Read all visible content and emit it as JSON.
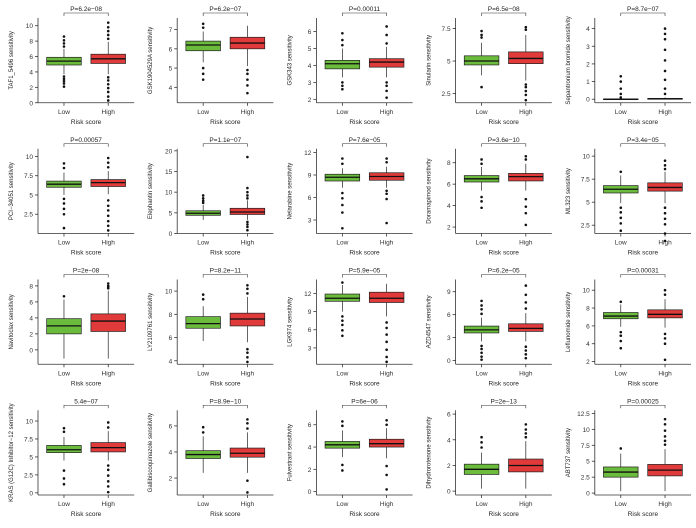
{
  "figure": {
    "xlabel": "Risk score",
    "categories": [
      "Low",
      "High"
    ],
    "colors": {
      "Low": "#6bbb3c",
      "High": "#e03a3a",
      "line": "#000000"
    }
  },
  "chart_data": [
    {
      "type": "box",
      "ylabel": "TAF1_5496 sensitivity",
      "pvalue": "P=6.2e−08",
      "ylim": [
        0,
        11
      ],
      "yticks": [
        0,
        2,
        4,
        6,
        8,
        10
      ],
      "series": [
        {
          "name": "Low",
          "q1": 4.9,
          "median": 5.4,
          "q3": 5.9,
          "whisker_low": 3.7,
          "whisker_high": 7.0,
          "outliers": [
            2.1,
            2.5,
            2.8,
            3.1,
            3.4,
            7.3,
            7.7,
            8.1,
            8.6
          ]
        },
        {
          "name": "High",
          "q1": 5.1,
          "median": 5.7,
          "q3": 6.3,
          "whisker_low": 3.7,
          "whisker_high": 7.9,
          "outliers": [
            0.3,
            0.8,
            1.4,
            1.9,
            2.4,
            2.9,
            3.3,
            8.3,
            8.8,
            9.3,
            9.8,
            10.4
          ]
        }
      ]
    },
    {
      "type": "box",
      "ylabel": "GSK1904529A sensitivity",
      "pvalue": "P=6.2e−07",
      "ylim": [
        3.2,
        7.6
      ],
      "yticks": [
        4,
        5,
        6,
        7
      ],
      "series": [
        {
          "name": "Low",
          "q1": 5.9,
          "median": 6.2,
          "q3": 6.4,
          "whisker_low": 5.3,
          "whisker_high": 6.9,
          "outliers": [
            4.4,
            4.7,
            5.0,
            7.1,
            7.3
          ]
        },
        {
          "name": "High",
          "q1": 6.0,
          "median": 6.3,
          "q3": 6.6,
          "whisker_low": 5.1,
          "whisker_high": 7.2,
          "outliers": [
            3.7,
            4.1,
            4.4,
            4.7,
            4.9
          ]
        }
      ]
    },
    {
      "type": "box",
      "ylabel": "GSK343 sensitivity",
      "pvalue": "P=0.00011",
      "ylim": [
        1.8,
        6.8
      ],
      "yticks": [
        2,
        3,
        4,
        5,
        6
      ],
      "series": [
        {
          "name": "Low",
          "q1": 3.8,
          "median": 4.1,
          "q3": 4.3,
          "whisker_low": 3.3,
          "whisker_high": 5.0,
          "outliers": [
            2.6,
            2.8,
            3.0,
            5.2,
            5.5,
            5.9
          ]
        },
        {
          "name": "High",
          "q1": 3.9,
          "median": 4.2,
          "q3": 4.4,
          "whisker_low": 3.3,
          "whisker_high": 5.1,
          "outliers": [
            2.1,
            2.5,
            2.8,
            3.0,
            5.3,
            5.8,
            6.3
          ]
        }
      ]
    },
    {
      "type": "box",
      "ylabel": "Sinularin sensitivity",
      "pvalue": "P=6.5e−08",
      "ylim": [
        1.8,
        8.3
      ],
      "yticks": [
        2.5,
        5.0,
        7.5
      ],
      "series": [
        {
          "name": "Low",
          "q1": 4.7,
          "median": 5.0,
          "q3": 5.4,
          "whisker_low": 3.9,
          "whisker_high": 6.4,
          "outliers": [
            3.0,
            6.8,
            7.0,
            7.3
          ]
        },
        {
          "name": "High",
          "q1": 4.8,
          "median": 5.2,
          "q3": 5.7,
          "whisker_low": 3.5,
          "whisker_high": 7.0,
          "outliers": [
            2.0,
            2.4,
            2.7,
            3.0,
            3.2,
            7.4,
            7.6
          ]
        }
      ]
    },
    {
      "type": "box",
      "ylabel": "Sepantronium bromide sensitivity",
      "pvalue": "P=8.7e−07",
      "ylim": [
        -0.2,
        4.6
      ],
      "yticks": [
        0,
        1,
        2,
        3,
        4
      ],
      "series": [
        {
          "name": "Low",
          "q1": 0.0,
          "median": 0.0,
          "q3": 0.02,
          "whisker_low": 0.0,
          "whisker_high": 0.05,
          "outliers": [
            0.1,
            0.3,
            0.6,
            1.0,
            1.3
          ]
        },
        {
          "name": "High",
          "q1": 0.0,
          "median": 0.02,
          "q3": 0.05,
          "whisker_low": 0.0,
          "whisker_high": 0.1,
          "outliers": [
            0.3,
            0.6,
            1.1,
            1.6,
            2.2,
            2.8,
            3.4,
            3.7,
            4.0
          ]
        }
      ]
    },
    {
      "type": "box",
      "ylabel": "PCI−34051 sensitivity",
      "pvalue": "P=0.00057",
      "ylim": [
        0,
        11
      ],
      "yticks": [
        2.5,
        5.0,
        7.5,
        10.0
      ],
      "series": [
        {
          "name": "Low",
          "q1": 6.0,
          "median": 6.4,
          "q3": 6.8,
          "whisker_low": 5.0,
          "whisker_high": 7.9,
          "outliers": [
            0.7,
            2.5,
            3.2,
            3.9,
            4.5,
            8.5,
            9.1
          ]
        },
        {
          "name": "High",
          "q1": 6.1,
          "median": 6.6,
          "q3": 7.0,
          "whisker_low": 5.1,
          "whisker_high": 8.1,
          "outliers": [
            0.4,
            1.0,
            1.6,
            2.3,
            3.0,
            3.6,
            4.3,
            8.6,
            9.2,
            9.8
          ]
        }
      ]
    },
    {
      "type": "box",
      "ylabel": "Elephantin sensitivity",
      "pvalue": "P=1.1e−07",
      "ylim": [
        0,
        20.5
      ],
      "yticks": [
        0,
        5,
        10,
        15,
        20
      ],
      "series": [
        {
          "name": "Low",
          "q1": 4.4,
          "median": 4.9,
          "q3": 5.5,
          "whisker_low": 3.3,
          "whisker_high": 6.9,
          "outliers": [
            7.4,
            7.9,
            8.5,
            9.2
          ]
        },
        {
          "name": "High",
          "q1": 4.6,
          "median": 5.2,
          "q3": 6.1,
          "whisker_low": 3.3,
          "whisker_high": 8.0,
          "outliers": [
            0.8,
            1.6,
            2.2,
            2.8,
            8.5,
            9.2,
            10.0,
            11.0,
            18.5
          ]
        }
      ]
    },
    {
      "type": "box",
      "ylabel": "Nelarabine sensitivity",
      "pvalue": "P=7.6e−05",
      "ylim": [
        1.2,
        12.5
      ],
      "yticks": [
        3,
        6,
        9,
        12
      ],
      "series": [
        {
          "name": "Low",
          "q1": 8.2,
          "median": 8.7,
          "q3": 9.1,
          "whisker_low": 7.3,
          "whisker_high": 9.9,
          "outliers": [
            1.9,
            4.0,
            5.0,
            5.9,
            6.6,
            10.5,
            11.2
          ]
        },
        {
          "name": "High",
          "q1": 8.3,
          "median": 8.8,
          "q3": 9.3,
          "whisker_low": 7.3,
          "whisker_high": 10.1,
          "outliers": [
            2.6,
            5.8,
            6.5,
            6.9,
            10.7,
            11.2
          ]
        }
      ]
    },
    {
      "type": "box",
      "ylabel": "Doramapimod sensitivity",
      "pvalue": "P=3.6e−10",
      "ylim": [
        1.4,
        9.3
      ],
      "yticks": [
        2,
        4,
        6,
        8
      ],
      "series": [
        {
          "name": "Low",
          "q1": 6.2,
          "median": 6.5,
          "q3": 6.8,
          "whisker_low": 5.4,
          "whisker_high": 7.6,
          "outliers": [
            3.8,
            4.4,
            4.8,
            7.9,
            8.3
          ]
        },
        {
          "name": "High",
          "q1": 6.3,
          "median": 6.7,
          "q3": 7.0,
          "whisker_low": 5.4,
          "whisker_high": 7.9,
          "outliers": [
            2.2,
            3.3,
            3.9,
            4.6,
            8.3,
            8.6
          ]
        }
      ]
    },
    {
      "type": "box",
      "ylabel": "ML323 sensitivity",
      "pvalue": "P=3.4e−05",
      "ylim": [
        1.6,
        10.8
      ],
      "yticks": [
        2.5,
        5.0,
        7.5,
        10.0
      ],
      "series": [
        {
          "name": "Low",
          "q1": 6.0,
          "median": 6.4,
          "q3": 6.8,
          "whisker_low": 4.9,
          "whisker_high": 7.9,
          "outliers": [
            1.9,
            2.7,
            3.3,
            3.9,
            4.4,
            8.3
          ]
        },
        {
          "name": "High",
          "q1": 6.2,
          "median": 6.6,
          "q3": 7.1,
          "whisker_low": 4.9,
          "whisker_high": 8.3,
          "outliers": [
            0.8,
            1.6,
            2.6,
            3.2,
            3.8,
            4.4,
            8.6,
            9.0,
            9.5
          ]
        }
      ]
    },
    {
      "type": "box",
      "ylabel": "Navitoclax sensitivity",
      "pvalue": "P=2e−08",
      "ylim": [
        -1.8,
        8.8
      ],
      "yticks": [
        0,
        2,
        4,
        6,
        8
      ],
      "series": [
        {
          "name": "Low",
          "q1": 2.0,
          "median": 3.0,
          "q3": 3.9,
          "whisker_low": -1.1,
          "whisker_high": 6.3,
          "outliers": [
            6.7
          ]
        },
        {
          "name": "High",
          "q1": 2.3,
          "median": 3.6,
          "q3": 4.5,
          "whisker_low": -1.1,
          "whisker_high": 7.4,
          "outliers": [
            7.7,
            8.0,
            8.3,
            7.9
          ]
        }
      ]
    },
    {
      "type": "box",
      "ylabel": "LY2109761 sensitivity",
      "pvalue": "P=8.2e−11",
      "ylim": [
        3.7,
        11
      ],
      "yticks": [
        4,
        6,
        8,
        10
      ],
      "series": [
        {
          "name": "Low",
          "q1": 6.8,
          "median": 7.2,
          "q3": 7.8,
          "whisker_low": 5.7,
          "whisker_high": 8.7,
          "outliers": [
            9.3,
            9.7
          ]
        },
        {
          "name": "High",
          "q1": 7.0,
          "median": 7.6,
          "q3": 8.1,
          "whisker_low": 5.6,
          "whisker_high": 9.5,
          "outliers": [
            3.9,
            4.3,
            4.7,
            5.0,
            9.8,
            10.2,
            10.5
          ]
        }
      ]
    },
    {
      "type": "box",
      "ylabel": "LGK974 sensitivity",
      "pvalue": "P=5.9e−05",
      "ylim": [
        0.3,
        14.3
      ],
      "yticks": [
        3,
        6,
        9,
        12
      ],
      "series": [
        {
          "name": "Low",
          "q1": 10.7,
          "median": 11.2,
          "q3": 11.9,
          "whisker_low": 9.0,
          "whisker_high": 13.4,
          "outliers": [
            5.0,
            5.9,
            6.8,
            7.5,
            8.2,
            13.8
          ]
        },
        {
          "name": "High",
          "q1": 10.5,
          "median": 11.2,
          "q3": 12.2,
          "whisker_low": 8.2,
          "whisker_high": 13.6,
          "outliers": [
            0.7,
            1.5,
            2.7,
            4.0,
            5.2,
            6.3,
            7.2
          ]
        }
      ]
    },
    {
      "type": "box",
      "ylabel": "AZD4547 sensitivity",
      "pvalue": "P=6.2e−05",
      "ylim": [
        -0.5,
        10.6
      ],
      "yticks": [
        0,
        3,
        6,
        9
      ],
      "series": [
        {
          "name": "Low",
          "q1": 3.6,
          "median": 4.0,
          "q3": 4.5,
          "whisker_low": 2.5,
          "whisker_high": 5.6,
          "outliers": [
            0.1,
            0.5,
            1.0,
            1.5,
            1.9,
            6.1,
            6.7,
            7.2,
            7.8
          ]
        },
        {
          "name": "High",
          "q1": 3.8,
          "median": 4.2,
          "q3": 4.8,
          "whisker_low": 2.5,
          "whisker_high": 6.2,
          "outliers": [
            0.3,
            0.8,
            1.3,
            1.8,
            6.8,
            7.6,
            8.6,
            9.8
          ]
        }
      ]
    },
    {
      "type": "box",
      "ylabel": "Leflunomide sensitivity",
      "pvalue": "P=0.00031",
      "ylim": [
        1.7,
        11.2
      ],
      "yticks": [
        2,
        4,
        6,
        8,
        10
      ],
      "series": [
        {
          "name": "Low",
          "q1": 6.8,
          "median": 7.1,
          "q3": 7.5,
          "whisker_low": 5.9,
          "whisker_high": 8.4,
          "outliers": [
            3.5,
            4.3,
            4.9,
            5.3,
            8.7
          ]
        },
        {
          "name": "High",
          "q1": 6.9,
          "median": 7.3,
          "q3": 7.8,
          "whisker_low": 5.8,
          "whisker_high": 9.0,
          "outliers": [
            2.2,
            4.0,
            4.6,
            5.1,
            9.5,
            10.0
          ]
        }
      ]
    },
    {
      "type": "box",
      "ylabel": "KRAS (G12C) Inhibitor−12 sensitivity",
      "pvalue": "5.4e−07",
      "ylim": [
        -0.3,
        11.5
      ],
      "yticks": [
        0.0,
        2.5,
        5.0,
        7.5,
        10.0
      ],
      "series": [
        {
          "name": "Low",
          "q1": 5.6,
          "median": 6.0,
          "q3": 6.6,
          "whisker_low": 4.5,
          "whisker_high": 7.8,
          "outliers": [
            1.2,
            2.0,
            3.1,
            8.5,
            9.0
          ]
        },
        {
          "name": "High",
          "q1": 5.7,
          "median": 6.3,
          "q3": 7.0,
          "whisker_low": 4.5,
          "whisker_high": 8.6,
          "outliers": [
            0.1,
            0.9,
            1.6,
            2.4,
            3.2,
            3.8,
            9.1,
            9.8
          ]
        }
      ]
    },
    {
      "type": "box",
      "ylabel": "Gallibiscoquinazole sensitivity",
      "pvalue": "P=8.9e−10",
      "ylim": [
        0.7,
        7.2
      ],
      "yticks": [
        2,
        4,
        6
      ],
      "series": [
        {
          "name": "Low",
          "q1": 3.5,
          "median": 3.8,
          "q3": 4.1,
          "whisker_low": 2.4,
          "whisker_high": 5.2,
          "outliers": [
            5.5,
            5.9
          ]
        },
        {
          "name": "High",
          "q1": 3.6,
          "median": 3.9,
          "q3": 4.3,
          "whisker_low": 2.4,
          "whisker_high": 5.5,
          "outliers": [
            0.9,
            1.8,
            5.8,
            6.2,
            6.5
          ]
        }
      ]
    },
    {
      "type": "box",
      "ylabel": "Fulvestrant sensitivity",
      "pvalue": "P=6e−06",
      "ylim": [
        -0.3,
        7.3
      ],
      "yticks": [
        0,
        2,
        4,
        6
      ],
      "series": [
        {
          "name": "Low",
          "q1": 3.9,
          "median": 4.2,
          "q3": 4.5,
          "whisker_low": 3.1,
          "whisker_high": 5.5,
          "outliers": [
            1.9,
            2.4,
            5.9,
            6.3
          ]
        },
        {
          "name": "High",
          "q1": 4.0,
          "median": 4.3,
          "q3": 4.7,
          "whisker_low": 3.0,
          "whisker_high": 5.7,
          "outliers": [
            0.2,
            1.5,
            2.3,
            6.0,
            6.4
          ]
        }
      ]
    },
    {
      "type": "box",
      "ylabel": "Dihydrorotenone sensitivity",
      "pvalue": "P=2e−13",
      "ylim": [
        -0.3,
        6.3
      ],
      "yticks": [
        0,
        2,
        4,
        6
      ],
      "series": [
        {
          "name": "Low",
          "q1": 1.3,
          "median": 1.7,
          "q3": 2.1,
          "whisker_low": 0.2,
          "whisker_high": 3.0,
          "outliers": [
            3.4,
            3.8,
            4.2
          ]
        },
        {
          "name": "High",
          "q1": 1.5,
          "median": 2.0,
          "q3": 2.5,
          "whisker_low": 0.2,
          "whisker_high": 3.9,
          "outliers": [
            4.2,
            4.5,
            4.8,
            5.2
          ]
        }
      ]
    },
    {
      "type": "box",
      "ylabel": "ABT737 sensitivity",
      "pvalue": "P=0.00025",
      "ylim": [
        -0.3,
        13
      ],
      "yticks": [
        0.0,
        2.5,
        5.0,
        7.5,
        10.0,
        12.5
      ],
      "series": [
        {
          "name": "Low",
          "q1": 2.5,
          "median": 3.3,
          "q3": 4.1,
          "whisker_low": 0.3,
          "whisker_high": 6.2,
          "outliers": [
            7.0
          ]
        },
        {
          "name": "High",
          "q1": 2.7,
          "median": 3.6,
          "q3": 4.5,
          "whisker_low": 0.3,
          "whisker_high": 6.9,
          "outliers": [
            7.6,
            8.2,
            8.9,
            9.8,
            10.8,
            11.6
          ]
        }
      ]
    }
  ]
}
